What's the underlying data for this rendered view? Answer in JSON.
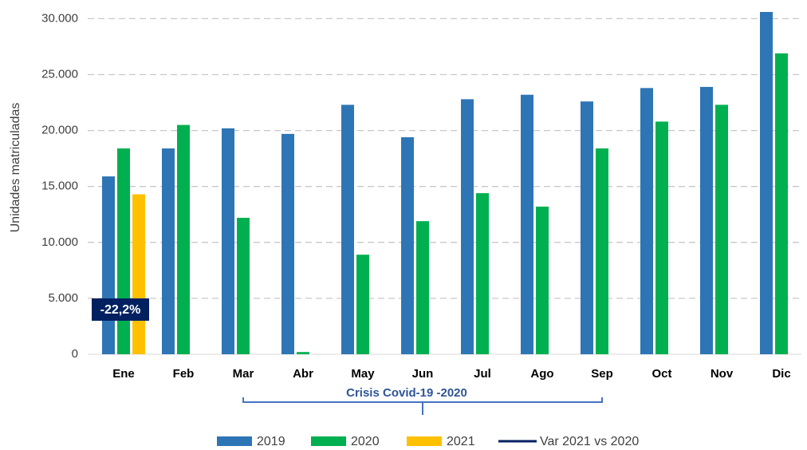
{
  "chart_data": {
    "type": "bar",
    "y_label": "Unidades matriculadas",
    "categories": [
      "Ene",
      "Feb",
      "Mar",
      "Abr",
      "May",
      "Jun",
      "Jul",
      "Ago",
      "Sep",
      "Oct",
      "Nov",
      "Dic"
    ],
    "series": [
      {
        "name": "2019",
        "color": "#2e75b6",
        "values": [
          15900,
          18400,
          20200,
          19700,
          22300,
          19400,
          22800,
          23200,
          22600,
          23800,
          23900,
          30600
        ]
      },
      {
        "name": "2020",
        "color": "#00b050",
        "values": [
          18400,
          20500,
          12200,
          200,
          8900,
          11900,
          14400,
          13200,
          18400,
          20800,
          22300,
          26900
        ]
      },
      {
        "name": "2021",
        "color": "#ffc000",
        "values": [
          14300,
          null,
          null,
          null,
          null,
          null,
          null,
          null,
          null,
          null,
          null,
          null
        ]
      },
      {
        "name": "Var 2021 vs 2020",
        "color": "#002060",
        "type": "line",
        "values": [
          -22.2,
          null,
          null,
          null,
          null,
          null,
          null,
          null,
          null,
          null,
          null,
          null
        ],
        "value_labels": [
          "-22,2%",
          null,
          null,
          null,
          null,
          null,
          null,
          null,
          null,
          null,
          null,
          null
        ]
      }
    ],
    "ylim": [
      0,
      30600
    ],
    "yticks": [
      0,
      {
        "value": 5000,
        "label": "5.000"
      },
      {
        "value": 10000,
        "label": "10.000"
      },
      {
        "value": 15000,
        "label": "15.000"
      },
      {
        "value": 20000,
        "label": "20.000"
      },
      {
        "value": 25000,
        "label": "25.000"
      },
      {
        "value": 30000,
        "label": "30.000"
      }
    ],
    "grid": true,
    "legend": "bottom",
    "annotation": {
      "text": "Crisis Covid-19 -2020",
      "from": 2,
      "to": 8
    }
  }
}
